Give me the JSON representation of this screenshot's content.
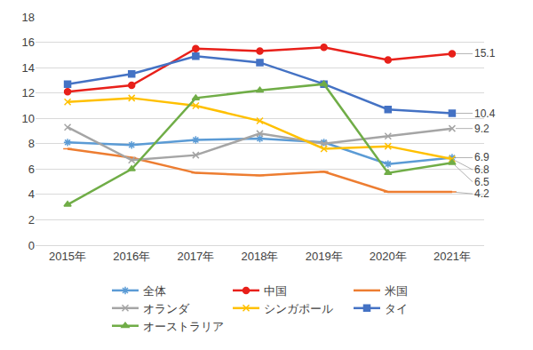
{
  "chart_data": {
    "type": "line",
    "categories": [
      "2015年",
      "2016年",
      "2017年",
      "2018年",
      "2019年",
      "2020年",
      "2021年"
    ],
    "series": [
      {
        "name": "全体",
        "color": "#5B9BD5",
        "marker": "asterisk",
        "values": [
          8.1,
          7.9,
          8.3,
          8.4,
          8.1,
          6.4,
          6.9
        ],
        "value_labels": [
          null,
          null,
          null,
          null,
          null,
          null,
          "6.9"
        ]
      },
      {
        "name": "中国",
        "color": "#E8201A",
        "marker": "circle",
        "values": [
          12.1,
          12.6,
          15.5,
          15.3,
          15.6,
          14.6,
          15.1
        ],
        "value_labels": [
          null,
          null,
          null,
          null,
          null,
          null,
          "15.1"
        ]
      },
      {
        "name": "米国",
        "color": "#ED7D31",
        "marker": "dash",
        "values": [
          7.6,
          6.9,
          5.7,
          5.5,
          5.8,
          4.2,
          4.2
        ],
        "value_labels": [
          null,
          null,
          null,
          null,
          null,
          null,
          "4.2"
        ]
      },
      {
        "name": "オランダ",
        "color": "#A5A5A5",
        "marker": "x",
        "values": [
          9.3,
          6.7,
          7.1,
          8.8,
          8.0,
          8.6,
          9.2
        ],
        "value_labels": [
          null,
          null,
          null,
          null,
          null,
          null,
          "9.2"
        ]
      },
      {
        "name": "シンガポール",
        "color": "#FFC000",
        "marker": "x",
        "values": [
          11.3,
          11.6,
          11.0,
          9.8,
          7.6,
          7.8,
          6.8
        ],
        "value_labels": [
          null,
          null,
          null,
          null,
          null,
          null,
          "6.8"
        ]
      },
      {
        "name": "タイ",
        "color": "#4472C4",
        "marker": "square",
        "values": [
          12.7,
          13.5,
          14.9,
          14.4,
          12.7,
          10.7,
          10.4
        ],
        "value_labels": [
          null,
          null,
          null,
          null,
          null,
          null,
          "10.4"
        ]
      },
      {
        "name": "オーストラリア",
        "color": "#70AD47",
        "marker": "triangle",
        "values": [
          3.2,
          6.0,
          11.6,
          12.2,
          12.7,
          5.7,
          6.5
        ],
        "value_labels": [
          null,
          null,
          null,
          null,
          null,
          null,
          "6.5"
        ]
      }
    ],
    "ylim": [
      0,
      18
    ],
    "yticks": [
      0,
      2,
      4,
      6,
      8,
      10,
      12,
      14,
      16,
      18
    ],
    "grid": true,
    "legend": "bottom"
  }
}
